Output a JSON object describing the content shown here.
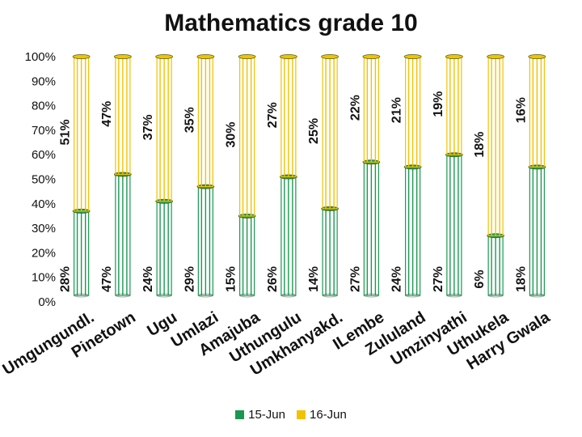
{
  "chart_data": {
    "type": "bar",
    "stacked": true,
    "title": "Mathematics grade 10",
    "xlabel": "",
    "ylabel": "",
    "ylim": [
      0,
      100
    ],
    "y_tick_labels": [
      "0%",
      "10%",
      "20%",
      "30%",
      "40%",
      "50%",
      "60%",
      "70%",
      "80%",
      "90%",
      "100%"
    ],
    "categories": [
      "Umgungundl.",
      "Pinetown",
      "Ugu",
      "Umlazi",
      "Amajuba",
      "Uthungulu",
      "Umkhanyakd.",
      "ILembe",
      "Zululand",
      "Umzinyathi",
      "Uthukela",
      "Harry Gwala"
    ],
    "series": [
      {
        "name": "15-Jun",
        "color": "#1a9850",
        "values": [
          28,
          47,
          24,
          29,
          15,
          26,
          14,
          27,
          24,
          27,
          6,
          18
        ],
        "stack_heights": [
          37,
          52,
          41,
          47,
          35,
          51,
          38,
          57,
          55,
          60,
          27,
          55
        ]
      },
      {
        "name": "16-Jun",
        "color": "#f2c200",
        "values": [
          51,
          47,
          37,
          35,
          30,
          27,
          25,
          22,
          21,
          19,
          18,
          16
        ]
      }
    ],
    "legend_position": "bottom",
    "grid": false
  }
}
